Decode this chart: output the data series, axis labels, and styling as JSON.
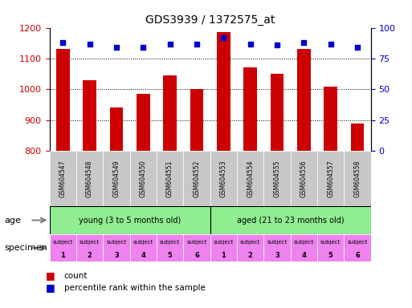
{
  "title": "GDS3939 / 1372575_at",
  "samples": [
    "GSM604547",
    "GSM604548",
    "GSM604549",
    "GSM604550",
    "GSM604551",
    "GSM604552",
    "GSM604553",
    "GSM604554",
    "GSM604555",
    "GSM604556",
    "GSM604557",
    "GSM604558"
  ],
  "counts": [
    1130,
    1030,
    940,
    985,
    1045,
    1000,
    1185,
    1070,
    1050,
    1130,
    1010,
    890
  ],
  "percentiles": [
    88,
    87,
    84,
    84,
    87,
    87,
    92,
    87,
    86,
    88,
    87,
    84
  ],
  "ylim_left": [
    800,
    1200
  ],
  "ylim_right": [
    0,
    100
  ],
  "yticks_left": [
    800,
    900,
    1000,
    1100,
    1200
  ],
  "yticks_right": [
    0,
    25,
    50,
    75,
    100
  ],
  "bar_color": "#cc0000",
  "dot_color": "#0000cc",
  "bar_width": 0.5,
  "age_young_label": "young (3 to 5 months old)",
  "age_aged_label": "aged (21 to 23 months old)",
  "age_color": "#90ee90",
  "specimen_bg": "#ee82ee",
  "specimen_labels": [
    "subject\n1",
    "subject\n2",
    "subject\n3",
    "subject\n4",
    "subject\n5",
    "subject\n6",
    "subject\n1",
    "subject\n2",
    "subject\n3",
    "subject\n4",
    "subject\n5",
    "subject\n6"
  ],
  "xlabel_age": "age",
  "xlabel_specimen": "specimen",
  "legend_count_label": "count",
  "legend_percentile_label": "percentile rank within the sample",
  "axis_label_color_left": "#cc0000",
  "axis_label_color_right": "#0000cc",
  "xticklabel_bg": "#c8c8c8",
  "arrow_color": "#808080"
}
